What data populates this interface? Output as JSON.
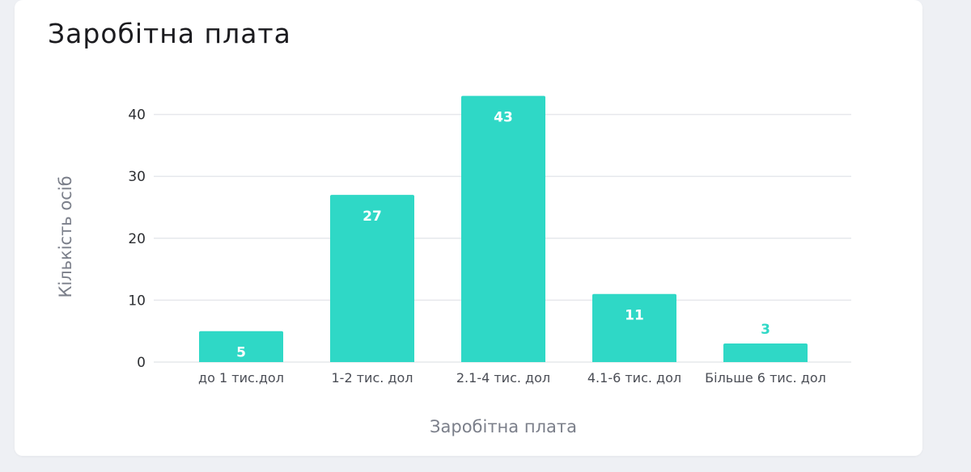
{
  "card": {
    "title": "Заробітна плата"
  },
  "chart_data": {
    "type": "bar",
    "title": "",
    "xlabel": "Заробітна плата",
    "ylabel": "Кількість осіб",
    "categories": [
      "до 1 тис.дол",
      "1-2 тис. дол",
      "2.1-4 тис. дол",
      "4.1-6 тис. дол",
      "Більше 6 тис. дол"
    ],
    "values": [
      5,
      27,
      43,
      11,
      3
    ],
    "ylim": [
      0,
      43
    ],
    "yticks": [
      0,
      10,
      20,
      30,
      40
    ],
    "grid": true,
    "legend": "none",
    "bar_color": "#2fd8c6",
    "label_color_inside": "#ffffff",
    "label_color_outside": "#2fd8c6"
  }
}
